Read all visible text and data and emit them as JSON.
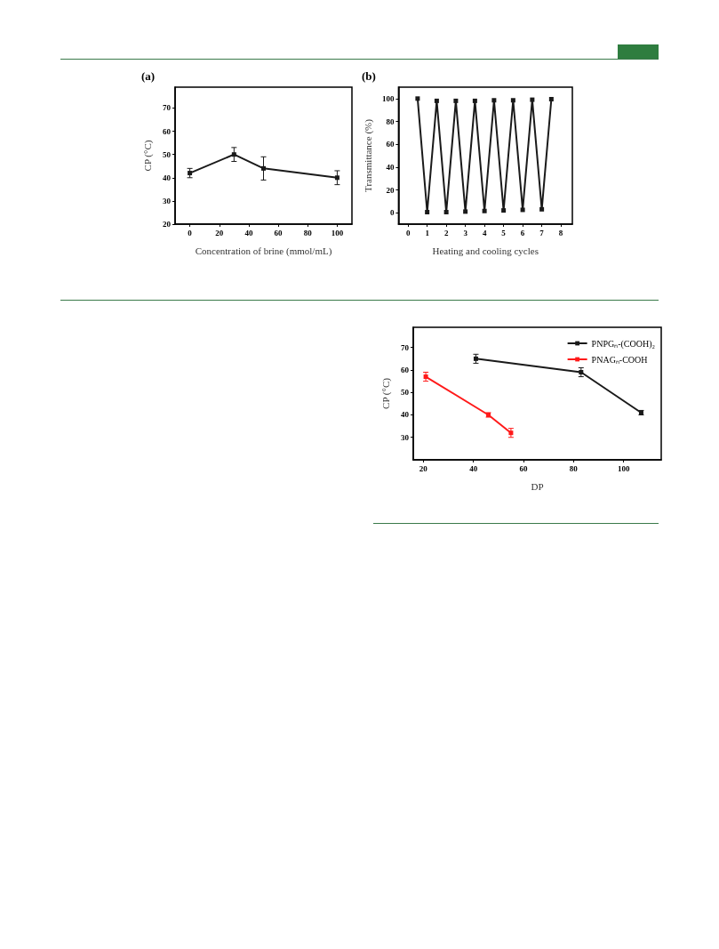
{
  "chart_data": [
    {
      "type": "line",
      "title": "(a)",
      "xlabel": "Concentration of brine (mmol/mL)",
      "ylabel": "CP (°C)",
      "xlim": [
        -10,
        110
      ],
      "xticks": [
        0,
        20,
        40,
        60,
        80,
        100
      ],
      "ylim": [
        20,
        79
      ],
      "yticks": [
        20,
        30,
        40,
        50,
        60,
        70
      ],
      "grid": false,
      "legend": false,
      "marker": "square",
      "series": [
        {
          "color": "#1a1a1a",
          "x": [
            0,
            30,
            50,
            100
          ],
          "values": [
            42,
            50,
            44,
            40
          ],
          "errors": [
            2,
            3,
            5,
            3
          ]
        }
      ]
    },
    {
      "type": "line",
      "title": "(b)",
      "xlabel": "Heating and cooling cycles",
      "ylabel": "Transmittance (%)",
      "xlim": [
        -0.5,
        8.6
      ],
      "xticks": [
        0,
        1,
        2,
        3,
        4,
        5,
        6,
        7,
        8
      ],
      "ylim": [
        -10,
        110
      ],
      "yticks": [
        0,
        20,
        40,
        60,
        80,
        100
      ],
      "grid": false,
      "legend": false,
      "marker": "square",
      "series": [
        {
          "color": "#1a1a1a",
          "x": [
            0.5,
            1,
            1.5,
            2,
            2.5,
            3,
            3.5,
            4,
            4.5,
            5,
            5.5,
            6,
            6.5,
            7,
            7.5
          ],
          "values": [
            100,
            0.5,
            98,
            0.5,
            98,
            1,
            98,
            1.5,
            98.5,
            2,
            98.5,
            2.5,
            99,
            3,
            99.5
          ]
        }
      ]
    },
    {
      "type": "line",
      "xlabel": "DP",
      "ylabel": "CP (°C)",
      "xlim": [
        16,
        115
      ],
      "xticks": [
        20,
        40,
        60,
        80,
        100
      ],
      "ylim": [
        20,
        79
      ],
      "yticks": [
        30,
        40,
        50,
        60,
        70
      ],
      "grid": false,
      "legend": "top right",
      "marker": "square",
      "series": [
        {
          "name": "PNPGₙ-(COOH)₂",
          "color": "#1a1a1a",
          "x": [
            41,
            83,
            107
          ],
          "values": [
            65,
            59,
            41
          ],
          "errors": [
            2,
            2,
            1
          ]
        },
        {
          "name": "PNAGₙ-COOH",
          "color": "#ff1a1a",
          "x": [
            21,
            46,
            55
          ],
          "values": [
            57,
            40,
            32
          ],
          "errors": [
            2,
            1,
            2
          ]
        }
      ]
    }
  ]
}
